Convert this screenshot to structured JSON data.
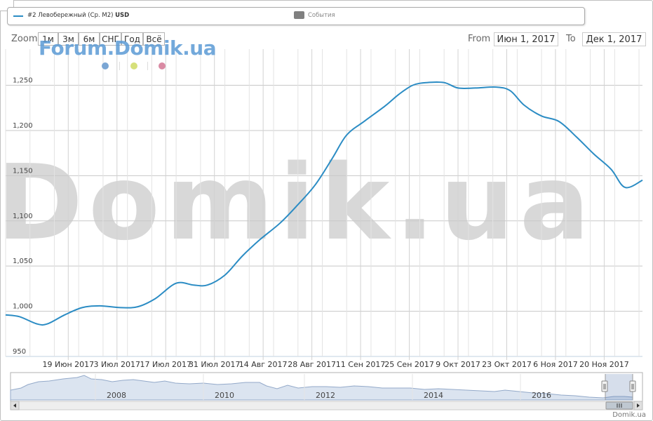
{
  "legend": {
    "series_label": "#2 Левобережный (Ср. М2)",
    "currency": "USD",
    "events_label": "События"
  },
  "zoom": {
    "label": "Zoom",
    "buttons": [
      "1м",
      "3м",
      "6м",
      "СНГ",
      "Год",
      "Всё"
    ]
  },
  "range": {
    "from_label": "From",
    "from_value": "Июн 1, 2017",
    "to_label": "To",
    "to_value": "Дек 1, 2017"
  },
  "watermark": {
    "forum": "Forum.Domik.ua",
    "main": "Domik.ua"
  },
  "colors": {
    "line": "#2b8cc4",
    "dots": [
      "#7aa6d4",
      "#d6e07a",
      "#d98aa3"
    ]
  },
  "credit": "Domik.ua",
  "chart_data": {
    "type": "line",
    "title": "",
    "xlabel": "",
    "ylabel": "",
    "currency": "USD",
    "ylim": [
      950,
      1290
    ],
    "yticks": [
      950,
      1000,
      1050,
      1100,
      1150,
      1200,
      1250
    ],
    "ytick_labels": [
      "950",
      "1,000",
      "1,050",
      "1,100",
      "1,150",
      "1,200",
      "1,250"
    ],
    "xlim": [
      "2017-06-01",
      "2017-12-01"
    ],
    "xticks": [
      {
        "date": "2017-06-19",
        "label": "19 Июн 2017"
      },
      {
        "date": "2017-07-03",
        "label": "3 Июл 2017"
      },
      {
        "date": "2017-07-17",
        "label": "17 Июл 2017"
      },
      {
        "date": "2017-07-31",
        "label": "31 Июл 2017"
      },
      {
        "date": "2017-08-14",
        "label": "14 Авг 2017"
      },
      {
        "date": "2017-08-28",
        "label": "28 Авг 2017"
      },
      {
        "date": "2017-09-11",
        "label": "11 Сен 2017"
      },
      {
        "date": "2017-09-25",
        "label": "25 Сен 2017"
      },
      {
        "date": "2017-10-09",
        "label": "9 Окт 2017"
      },
      {
        "date": "2017-10-23",
        "label": "23 Окт 2017"
      },
      {
        "date": "2017-11-06",
        "label": "6 Ноя 2017"
      },
      {
        "date": "2017-11-20",
        "label": "20 Ноя 2017"
      }
    ],
    "grid": true,
    "series": [
      {
        "name": "#2 Левобережный (Ср. М2)",
        "x": [
          "2017-06-01",
          "2017-06-05",
          "2017-06-10",
          "2017-06-13",
          "2017-06-18",
          "2017-06-23",
          "2017-06-28",
          "2017-07-04",
          "2017-07-09",
          "2017-07-14",
          "2017-07-20",
          "2017-07-25",
          "2017-07-29",
          "2017-08-03",
          "2017-08-08",
          "2017-08-13",
          "2017-08-19",
          "2017-08-24",
          "2017-08-29",
          "2017-09-03",
          "2017-09-07",
          "2017-09-12",
          "2017-09-18",
          "2017-09-22",
          "2017-09-26",
          "2017-09-30",
          "2017-10-05",
          "2017-10-09",
          "2017-10-14",
          "2017-10-20",
          "2017-10-24",
          "2017-10-28",
          "2017-11-02",
          "2017-11-07",
          "2017-11-12",
          "2017-11-17",
          "2017-11-22",
          "2017-11-26",
          "2017-12-01"
        ],
        "values": [
          996,
          994,
          986,
          986,
          996,
          1004,
          1006,
          1004,
          1005,
          1014,
          1031,
          1029,
          1029,
          1040,
          1061,
          1079,
          1098,
          1118,
          1140,
          1170,
          1195,
          1210,
          1227,
          1240,
          1250,
          1253,
          1253,
          1247,
          1247,
          1248,
          1244,
          1228,
          1216,
          1210,
          1193,
          1174,
          1157,
          1137,
          1145
        ]
      }
    ],
    "navigator": {
      "axis_labels": [
        "2008",
        "2010",
        "2012",
        "2014",
        "2016"
      ]
    }
  }
}
